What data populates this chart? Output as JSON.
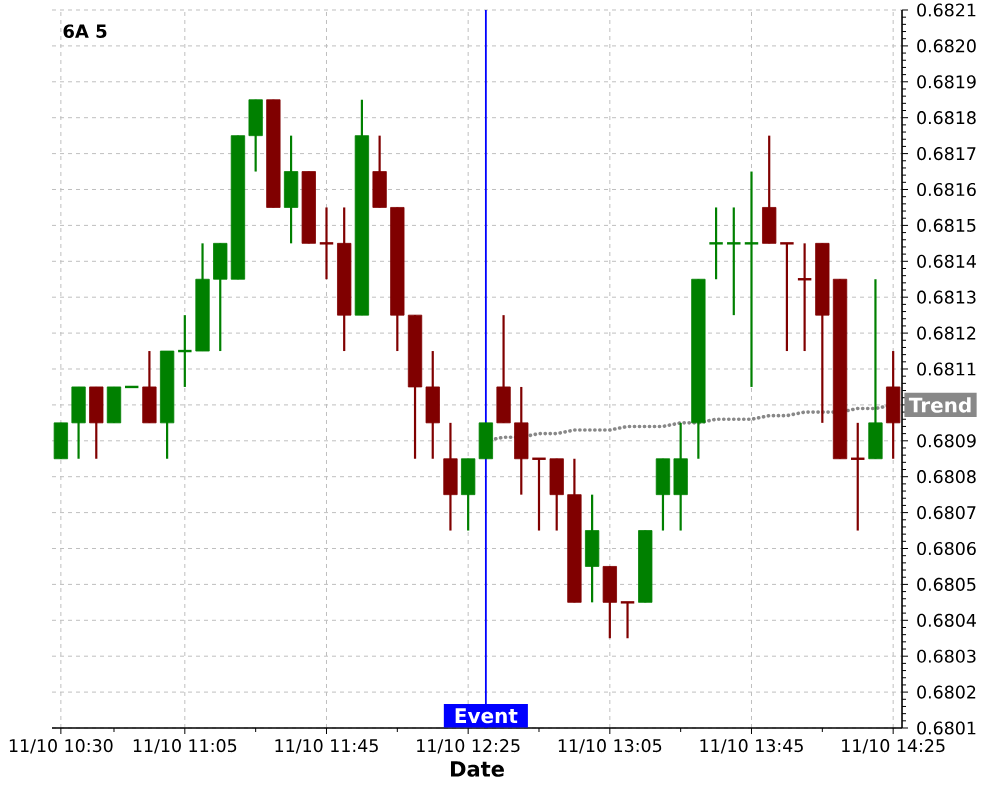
{
  "chart_data": {
    "type": "candlestick",
    "title": "6A 5",
    "xlabel": "Date",
    "categories": [
      "11/10 10:30",
      null,
      null,
      null,
      null,
      null,
      null,
      "11/10 11:05",
      null,
      null,
      null,
      null,
      null,
      null,
      null,
      "11/10 11:45",
      null,
      null,
      null,
      null,
      null,
      null,
      null,
      "11/10 12:25",
      null,
      null,
      null,
      null,
      null,
      null,
      null,
      "11/10 13:05",
      null,
      null,
      null,
      null,
      null,
      null,
      null,
      "11/10 13:45",
      null,
      null,
      null,
      null,
      null,
      null,
      null,
      "11/10 14:25"
    ],
    "ohlc": [
      [
        0.68085,
        0.68095,
        0.68085,
        0.68095
      ],
      [
        0.68095,
        0.68105,
        0.68085,
        0.68105
      ],
      [
        0.68105,
        0.68105,
        0.68085,
        0.68095
      ],
      [
        0.68095,
        0.68105,
        0.68095,
        0.68105
      ],
      [
        0.68105,
        0.68105,
        0.68105,
        0.68105
      ],
      [
        0.68105,
        0.68115,
        0.68095,
        0.68095
      ],
      [
        0.68095,
        0.68115,
        0.68085,
        0.68115
      ],
      [
        0.68115,
        0.68125,
        0.68105,
        0.68115
      ],
      [
        0.68115,
        0.68145,
        0.68115,
        0.68135
      ],
      [
        0.68135,
        0.68145,
        0.68115,
        0.68145
      ],
      [
        0.68135,
        0.68175,
        0.68135,
        0.68175
      ],
      [
        0.68175,
        0.68185,
        0.68165,
        0.68185
      ],
      [
        0.68185,
        0.68185,
        0.68155,
        0.68155
      ],
      [
        0.68155,
        0.68175,
        0.68145,
        0.68165
      ],
      [
        0.68165,
        0.68165,
        0.68145,
        0.68145
      ],
      [
        0.68145,
        0.68155,
        0.68135,
        0.68145
      ],
      [
        0.68145,
        0.68155,
        0.68115,
        0.68125
      ],
      [
        0.68125,
        0.68185,
        0.68125,
        0.68175
      ],
      [
        0.68165,
        0.68175,
        0.68155,
        0.68155
      ],
      [
        0.68155,
        0.68155,
        0.68115,
        0.68125
      ],
      [
        0.68125,
        0.68125,
        0.68085,
        0.68105
      ],
      [
        0.68105,
        0.68115,
        0.68085,
        0.68095
      ],
      [
        0.68085,
        0.68095,
        0.68065,
        0.68075
      ],
      [
        0.68075,
        0.68085,
        0.68065,
        0.68085
      ],
      [
        0.68085,
        0.68095,
        0.68085,
        0.68095
      ],
      [
        0.68105,
        0.68125,
        0.68095,
        0.68095
      ],
      [
        0.68095,
        0.68105,
        0.68075,
        0.68085
      ],
      [
        0.68085,
        0.68085,
        0.68065,
        0.68085
      ],
      [
        0.68085,
        0.68085,
        0.68065,
        0.68075
      ],
      [
        0.68075,
        0.68085,
        0.68045,
        0.68045
      ],
      [
        0.68055,
        0.68075,
        0.68045,
        0.68065
      ],
      [
        0.68055,
        0.68055,
        0.68035,
        0.68045
      ],
      [
        0.68045,
        0.68045,
        0.68035,
        0.68045
      ],
      [
        0.68045,
        0.68065,
        0.68045,
        0.68065
      ],
      [
        0.68075,
        0.68085,
        0.68065,
        0.68085
      ],
      [
        0.68075,
        0.68095,
        0.68065,
        0.68085
      ],
      [
        0.68095,
        0.68135,
        0.68085,
        0.68135
      ],
      [
        0.68145,
        0.68155,
        0.68135,
        0.68145
      ],
      [
        0.68145,
        0.68155,
        0.68125,
        0.68145
      ],
      [
        0.68145,
        0.68165,
        0.68105,
        0.68145
      ],
      [
        0.68155,
        0.68175,
        0.68145,
        0.68145
      ],
      [
        0.68145,
        0.68145,
        0.68115,
        0.68145
      ],
      [
        0.68135,
        0.68145,
        0.68115,
        0.68135
      ],
      [
        0.68145,
        0.68145,
        0.68095,
        0.68125
      ],
      [
        0.68135,
        0.68135,
        0.68085,
        0.68085
      ],
      [
        0.68085,
        0.68095,
        0.68065,
        0.68085
      ],
      [
        0.68085,
        0.68135,
        0.68085,
        0.68095
      ],
      [
        0.68105,
        0.68115,
        0.68085,
        0.68095
      ]
    ],
    "colors": [
      "#008000",
      "#008000",
      "#800000",
      "#008000",
      "#008000",
      "#800000",
      "#008000",
      "#008000",
      "#008000",
      "#008000",
      "#008000",
      "#008000",
      "#800000",
      "#008000",
      "#800000",
      "#800000",
      "#800000",
      "#008000",
      "#800000",
      "#800000",
      "#800000",
      "#800000",
      "#800000",
      "#008000",
      "#008000",
      "#800000",
      "#800000",
      "#800000",
      "#800000",
      "#800000",
      "#008000",
      "#800000",
      "#800000",
      "#008000",
      "#008000",
      "#008000",
      "#008000",
      "#008000",
      "#008000",
      "#008000",
      "#800000",
      "#800000",
      "#800000",
      "#800000",
      "#800000",
      "#800000",
      "#008000",
      "#800000"
    ],
    "ylim": [
      0.6801,
      0.6821
    ],
    "yticks": [
      0.6801,
      0.6802,
      0.6803,
      0.6804,
      0.6805,
      0.6806,
      0.6807,
      0.6808,
      0.6809,
      {
        "value": 0.681,
        "label": null
      },
      0.6811,
      0.6812,
      0.6813,
      0.6814,
      0.6815,
      0.6816,
      0.6817,
      0.6818,
      0.6819,
      {
        "value": 0.682,
        "label": "0.6820"
      },
      0.6821
    ],
    "grid": true,
    "series": [
      {
        "type": "line",
        "name": "Trend",
        "color": "#888888",
        "line_style": "dotted",
        "values": [
          null,
          null,
          null,
          null,
          null,
          null,
          null,
          null,
          null,
          null,
          null,
          null,
          null,
          null,
          null,
          null,
          null,
          null,
          null,
          null,
          null,
          null,
          null,
          null,
          0.6809,
          0.68091,
          0.68091,
          0.68092,
          0.68092,
          0.68093,
          0.68093,
          0.68093,
          0.68094,
          0.68094,
          0.68094,
          0.68095,
          0.68095,
          0.68096,
          0.68096,
          0.68096,
          0.68097,
          0.68097,
          0.68098,
          0.68098,
          0.68098,
          0.68099,
          0.68099,
          0.681
        ]
      }
    ],
    "annotations": [
      "Event"
    ]
  }
}
